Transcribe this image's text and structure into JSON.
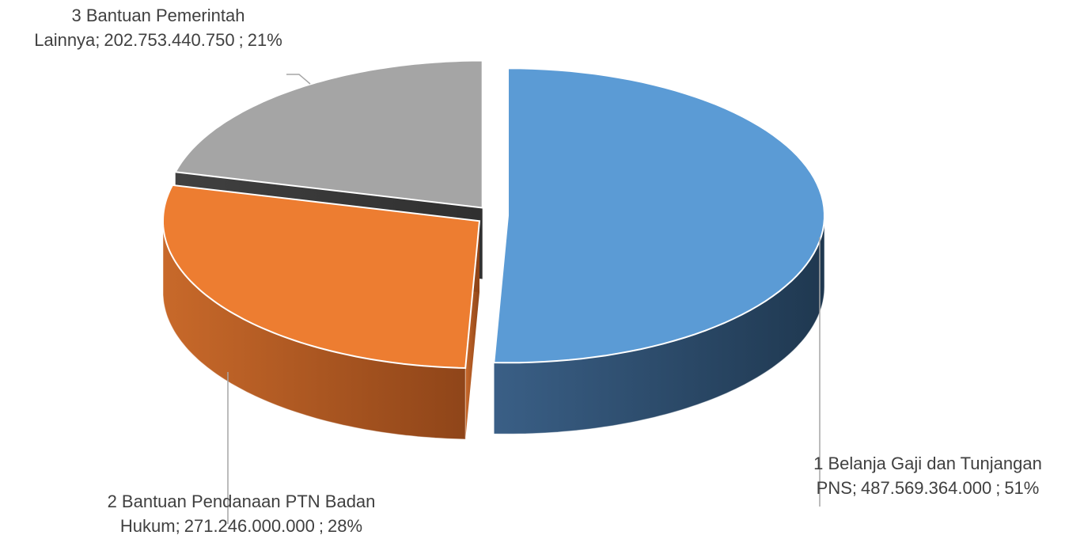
{
  "chart_data": {
    "type": "pie3d",
    "categories": [
      "1 Belanja Gaji dan Tunjangan PNS",
      "2 Bantuan Pendanaan PTN Badan Hukum",
      "3 Bantuan Pemerintah Lainnya"
    ],
    "values": [
      487569364000,
      271246000000,
      202753440750
    ],
    "value_labels": [
      "487.569.364.000",
      "271.246.000.000",
      "202.753.440.750"
    ],
    "percentages": [
      51,
      28,
      21
    ],
    "percentage_labels": [
      "51%",
      "28%",
      "21%"
    ],
    "label_separator": ";",
    "colors": [
      "#5b9bd5",
      "#ed7d31",
      "#a5a5a5"
    ]
  }
}
